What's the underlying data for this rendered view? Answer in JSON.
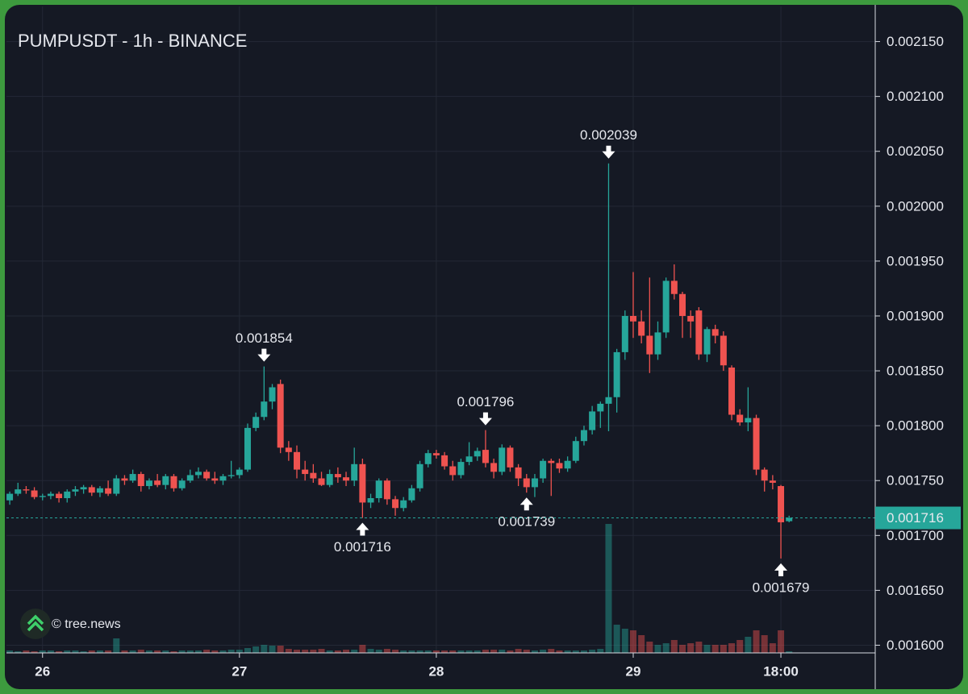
{
  "chart_data": {
    "type": "candlestick",
    "title": "PUMPUSDT - 1h - BINANCE",
    "watermark": "© tree.news",
    "up_color": "#26a69a",
    "down_color": "#ef5350",
    "x": [
      -4,
      -3,
      -2,
      -1,
      0,
      1,
      2,
      3,
      4,
      5,
      6,
      7,
      8,
      9,
      10,
      11,
      12,
      13,
      14,
      15,
      16,
      17,
      18,
      19,
      20,
      21,
      22,
      23,
      24,
      25,
      26,
      27,
      28,
      29,
      30,
      31,
      32,
      33,
      34,
      35,
      36,
      37,
      38,
      39,
      40,
      41,
      42,
      43,
      44,
      45,
      46,
      47,
      48,
      49,
      50,
      51,
      52,
      53,
      54,
      55,
      56,
      57,
      58,
      59,
      60,
      61,
      62,
      63,
      64,
      65,
      66,
      67,
      68,
      69,
      70,
      71,
      72,
      73,
      74,
      75,
      76,
      77,
      78,
      79,
      80,
      81,
      82,
      83,
      84,
      85,
      86,
      87,
      88,
      89,
      90,
      91
    ],
    "open": [
      0.001732,
      0.001738,
      0.001742,
      0.001741,
      0.001735,
      0.001736,
      0.001738,
      0.001734,
      0.00174,
      0.001742,
      0.001744,
      0.001739,
      0.001743,
      0.001738,
      0.001752,
      0.00175,
      0.001756,
      0.001745,
      0.00175,
      0.001746,
      0.001754,
      0.001743,
      0.00175,
      0.001755,
      0.001758,
      0.001752,
      0.00175,
      0.001754,
      0.001755,
      0.00176,
      0.001798,
      0.001808,
      0.001822,
      0.001838,
      0.00178,
      0.001776,
      0.00176,
      0.001757,
      0.001752,
      0.001746,
      0.001756,
      0.001753,
      0.00175,
      0.001765,
      0.00173,
      0.001734,
      0.00175,
      0.001733,
      0.001725,
      0.001732,
      0.001743,
      0.001765,
      0.001775,
      0.001773,
      0.001763,
      0.001755,
      0.001767,
      0.001772,
      0.001778,
      0.001766,
      0.001758,
      0.00178,
      0.001762,
      0.001752,
      0.001744,
      0.001752,
      0.001768,
      0.001766,
      0.001761,
      0.001768,
      0.001786,
      0.001796,
      0.001813,
      0.00182,
      0.001826,
      0.001867,
      0.0019,
      0.001895,
      0.001882,
      0.001865,
      0.001885,
      0.001932,
      0.00192,
      0.0019,
      0.001905,
      0.001865,
      0.001888,
      0.001882,
      0.001853,
      0.00181,
      0.001803,
      0.001807,
      0.00176,
      0.00175,
      0.001745,
      0.001713
    ],
    "high": [
      0.00174,
      0.001748,
      0.001745,
      0.001744,
      0.001738,
      0.00174,
      0.00174,
      0.001742,
      0.001745,
      0.001746,
      0.001746,
      0.001745,
      0.00175,
      0.001755,
      0.001755,
      0.00176,
      0.001758,
      0.001752,
      0.001756,
      0.001756,
      0.001756,
      0.001752,
      0.00176,
      0.001762,
      0.00176,
      0.001758,
      0.001756,
      0.001768,
      0.001762,
      0.001802,
      0.001812,
      0.001854,
      0.001838,
      0.001842,
      0.001786,
      0.001782,
      0.001768,
      0.001765,
      0.001758,
      0.00176,
      0.001762,
      0.001758,
      0.00178,
      0.00177,
      0.001738,
      0.001752,
      0.001752,
      0.001736,
      0.001735,
      0.001746,
      0.001768,
      0.001778,
      0.001778,
      0.001776,
      0.001768,
      0.00177,
      0.001785,
      0.00178,
      0.001796,
      0.00177,
      0.001783,
      0.001782,
      0.001765,
      0.001756,
      0.001756,
      0.00177,
      0.00177,
      0.00177,
      0.001772,
      0.00179,
      0.0018,
      0.001818,
      0.001822,
      0.002039,
      0.00187,
      0.001905,
      0.00194,
      0.001905,
      0.001935,
      0.001895,
      0.001935,
      0.001947,
      0.001922,
      0.001905,
      0.001908,
      0.00189,
      0.001892,
      0.001886,
      0.001855,
      0.001815,
      0.001835,
      0.00181,
      0.001762,
      0.001755,
      0.001746,
      0.001718
    ],
    "low": [
      0.001728,
      0.001736,
      0.001738,
      0.001733,
      0.001732,
      0.001733,
      0.00173,
      0.00173,
      0.001736,
      0.001738,
      0.001736,
      0.001735,
      0.001736,
      0.001736,
      0.001746,
      0.001748,
      0.00174,
      0.001742,
      0.001744,
      0.001742,
      0.00174,
      0.001741,
      0.001748,
      0.001752,
      0.00175,
      0.001747,
      0.001746,
      0.001752,
      0.001752,
      0.001758,
      0.001795,
      0.001805,
      0.001815,
      0.001775,
      0.001768,
      0.001752,
      0.00175,
      0.001748,
      0.001745,
      0.001744,
      0.001748,
      0.001745,
      0.001745,
      0.001716,
      0.001725,
      0.00173,
      0.001728,
      0.001718,
      0.001722,
      0.00173,
      0.00174,
      0.001762,
      0.00177,
      0.00176,
      0.00175,
      0.001752,
      0.001764,
      0.001768,
      0.001762,
      0.001752,
      0.001755,
      0.001758,
      0.001745,
      0.001739,
      0.001735,
      0.001748,
      0.001736,
      0.001757,
      0.001758,
      0.001766,
      0.001782,
      0.001792,
      0.001798,
      0.001795,
      0.001812,
      0.00186,
      0.00188,
      0.001875,
      0.001848,
      0.00186,
      0.00188,
      0.001915,
      0.00188,
      0.00188,
      0.00186,
      0.001858,
      0.001875,
      0.00185,
      0.001805,
      0.0018,
      0.001795,
      0.001755,
      0.00174,
      0.001742,
      0.001679,
      0.001712
    ],
    "close": [
      0.001738,
      0.001742,
      0.001741,
      0.001735,
      0.001736,
      0.001738,
      0.001734,
      0.00174,
      0.001742,
      0.001744,
      0.001739,
      0.001743,
      0.001738,
      0.001752,
      0.00175,
      0.001756,
      0.001745,
      0.00175,
      0.001746,
      0.001754,
      0.001743,
      0.00175,
      0.001755,
      0.001758,
      0.001752,
      0.00175,
      0.001754,
      0.001755,
      0.00176,
      0.001798,
      0.001808,
      0.001822,
      0.001835,
      0.00178,
      0.001776,
      0.00176,
      0.001756,
      0.001752,
      0.001746,
      0.001756,
      0.001753,
      0.00175,
      0.001765,
      0.00173,
      0.001734,
      0.00175,
      0.001733,
      0.001725,
      0.001732,
      0.001743,
      0.001765,
      0.001775,
      0.001773,
      0.001763,
      0.001755,
      0.001767,
      0.001772,
      0.001777,
      0.001766,
      0.001758,
      0.00178,
      0.001762,
      0.001752,
      0.001744,
      0.001752,
      0.001768,
      0.001766,
      0.001761,
      0.001768,
      0.001786,
      0.001796,
      0.001813,
      0.00182,
      0.001826,
      0.001867,
      0.0019,
      0.001895,
      0.001882,
      0.001865,
      0.001885,
      0.001932,
      0.00192,
      0.0019,
      0.001895,
      0.001865,
      0.001888,
      0.001882,
      0.001855,
      0.00181,
      0.001803,
      0.001807,
      0.00176,
      0.00175,
      0.001748,
      0.001712,
      0.001716
    ],
    "volume": [
      3,
      2,
      3,
      2,
      3,
      3,
      2,
      3,
      3,
      2,
      3,
      3,
      3,
      18,
      3,
      3,
      4,
      3,
      3,
      3,
      2,
      3,
      3,
      3,
      4,
      3,
      3,
      4,
      4,
      6,
      8,
      10,
      9,
      9,
      5,
      4,
      4,
      4,
      5,
      3,
      3,
      4,
      4,
      10,
      5,
      4,
      5,
      4,
      3,
      3,
      3,
      3,
      3,
      3,
      3,
      3,
      3,
      3,
      4,
      4,
      4,
      3,
      5,
      4,
      3,
      4,
      5,
      3,
      3,
      3,
      3,
      4,
      5,
      160,
      35,
      30,
      28,
      22,
      14,
      10,
      12,
      16,
      10,
      12,
      14,
      10,
      10,
      10,
      12,
      16,
      20,
      28,
      22,
      12,
      28,
      2
    ],
    "annotations": [
      {
        "x": 27,
        "value": 0.001854,
        "position": "above"
      },
      {
        "x": 39,
        "value": 0.001716,
        "position": "below"
      },
      {
        "x": 54,
        "value": 0.001796,
        "position": "above"
      },
      {
        "x": 59,
        "value": 0.001739,
        "position": "below"
      },
      {
        "x": 69,
        "value": 0.002039,
        "position": "above"
      },
      {
        "x": 90,
        "value": 0.001679,
        "position": "below"
      }
    ],
    "last_price": 0.001716,
    "xlim": [
      -4.4,
      101.5
    ],
    "xticks": [
      {
        "value": 0,
        "label": "26"
      },
      {
        "value": 24,
        "label": "27"
      },
      {
        "value": 48,
        "label": "28"
      },
      {
        "value": 72,
        "label": "29"
      },
      {
        "value": 90,
        "label": "18:00"
      }
    ],
    "ylim": [
      0.001593,
      0.002182
    ],
    "yticks": [
      {
        "value": 0.0016,
        "label": "0.001600"
      },
      {
        "value": 0.00165,
        "label": "0.001650"
      },
      {
        "value": 0.0017,
        "label": "0.001700"
      },
      {
        "value": 0.00175,
        "label": "0.001750"
      },
      {
        "value": 0.0018,
        "label": "0.001800"
      },
      {
        "value": 0.00185,
        "label": "0.001850"
      },
      {
        "value": 0.0019,
        "label": "0.001900"
      },
      {
        "value": 0.00195,
        "label": "0.001950"
      },
      {
        "value": 0.002,
        "label": "0.002000"
      },
      {
        "value": 0.00205,
        "label": "0.002050"
      },
      {
        "value": 0.0021,
        "label": "0.002100"
      },
      {
        "value": 0.00215,
        "label": "0.002150"
      }
    ],
    "grid": true
  }
}
